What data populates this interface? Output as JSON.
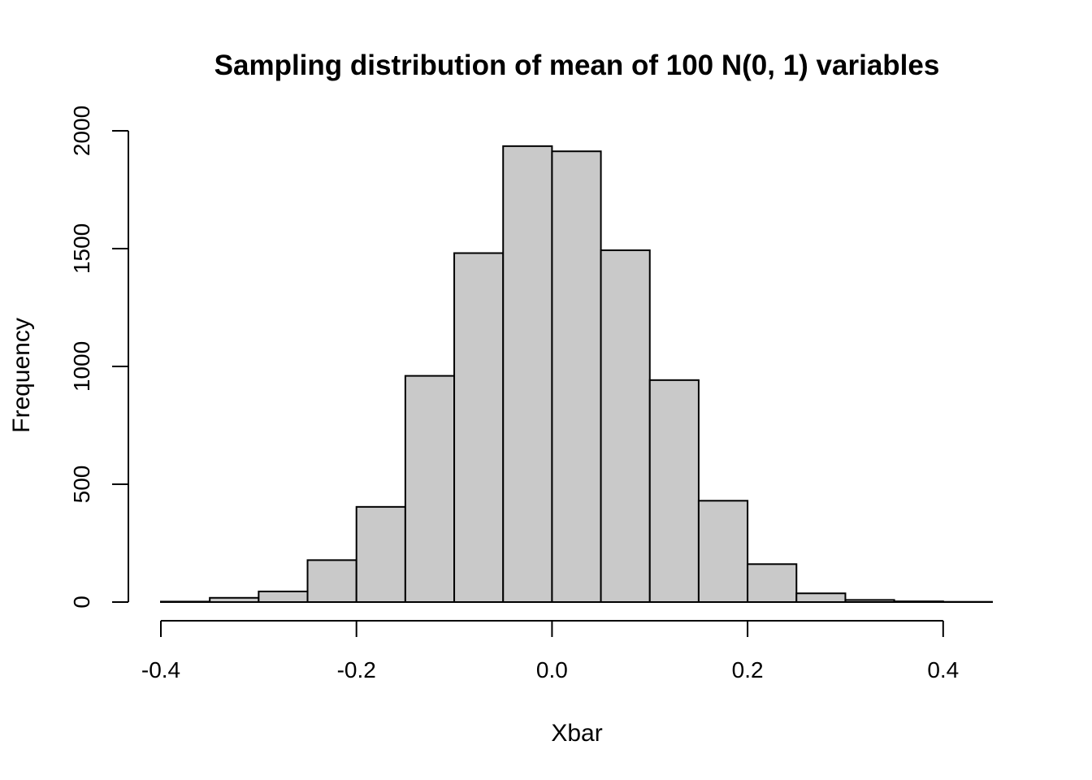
{
  "chart_data": {
    "type": "bar",
    "title": "Sampling distribution of mean of 100 N(0, 1) variables",
    "xlabel": "Xbar",
    "ylabel": "Frequency",
    "bins": [
      {
        "x0": -0.4,
        "x1": -0.35,
        "count": 2
      },
      {
        "x0": -0.35,
        "x1": -0.3,
        "count": 18
      },
      {
        "x0": -0.3,
        "x1": -0.25,
        "count": 45
      },
      {
        "x0": -0.25,
        "x1": -0.2,
        "count": 178
      },
      {
        "x0": -0.2,
        "x1": -0.15,
        "count": 404
      },
      {
        "x0": -0.15,
        "x1": -0.1,
        "count": 960
      },
      {
        "x0": -0.1,
        "x1": -0.05,
        "count": 1481
      },
      {
        "x0": -0.05,
        "x1": 0.0,
        "count": 1935
      },
      {
        "x0": 0.0,
        "x1": 0.05,
        "count": 1913
      },
      {
        "x0": 0.05,
        "x1": 0.1,
        "count": 1493
      },
      {
        "x0": 0.1,
        "x1": 0.15,
        "count": 942
      },
      {
        "x0": 0.15,
        "x1": 0.2,
        "count": 430
      },
      {
        "x0": 0.2,
        "x1": 0.25,
        "count": 161
      },
      {
        "x0": 0.25,
        "x1": 0.3,
        "count": 37
      },
      {
        "x0": 0.3,
        "x1": 0.35,
        "count": 9
      },
      {
        "x0": 0.35,
        "x1": 0.4,
        "count": 3
      },
      {
        "x0": 0.4,
        "x1": 0.45,
        "count": 1
      }
    ],
    "xlim": [
      -0.4,
      0.45
    ],
    "ylim": [
      0,
      2000
    ],
    "xticks": [
      -0.4,
      -0.2,
      0.0,
      0.2,
      0.4
    ],
    "xtick_labels": [
      "-0.4",
      "-0.2",
      "0.0",
      "0.2",
      "0.4"
    ],
    "yticks": [
      0,
      500,
      1000,
      1500,
      2000
    ],
    "ytick_labels": [
      "0",
      "500",
      "1000",
      "1500",
      "2000"
    ],
    "grid": false,
    "legend": "none",
    "bar_fill": "#c9c9c9",
    "bar_stroke": "#000000"
  }
}
